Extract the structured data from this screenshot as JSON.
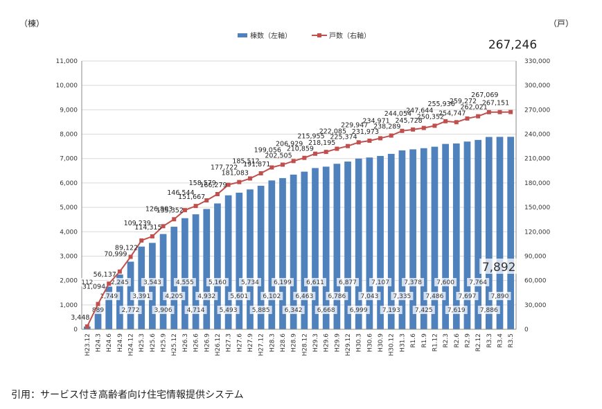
{
  "caption": "引用：サービス付き高齢者向け住宅情報提供システム",
  "chart_data": {
    "type": "bar",
    "left_unit": "（棟）",
    "right_unit": "（戸）",
    "categories": [
      "H23.12",
      "H24.3",
      "H24.6",
      "H24.9",
      "H24.12",
      "H25.3",
      "H25.6",
      "H25.9",
      "H25.12",
      "H26.3",
      "H26.6",
      "H26.9",
      "H26.12",
      "H27.3",
      "H27.6",
      "H27.9",
      "H27.12",
      "H28.3",
      "H28.6",
      "H28.9",
      "H28.12",
      "H29.3",
      "H29.6",
      "H29.9",
      "H29.12",
      "H30.3",
      "H30.6",
      "H30.9",
      "H30.12",
      "H31.3",
      "R1.6",
      "R1.9",
      "R1.12",
      "R2.3",
      "R2.6",
      "R2.9",
      "R2.12",
      "R3.3",
      "R3.4",
      "R3.5"
    ],
    "series": [
      {
        "name": "棟数（左軸）",
        "type": "bar",
        "axis": "left",
        "color": "#4F81BD",
        "values": [
          112,
          889,
          1749,
          2245,
          2772,
          3391,
          3543,
          3906,
          4205,
          4555,
          4714,
          4932,
          5160,
          5493,
          5601,
          5734,
          5885,
          6102,
          6199,
          6342,
          6463,
          6611,
          6668,
          6786,
          6877,
          6999,
          7043,
          7107,
          7193,
          7335,
          7378,
          7425,
          7486,
          7600,
          7619,
          7697,
          7764,
          7886,
          7890,
          7892
        ],
        "labels": [
          "112",
          "889",
          "1,749",
          "2,245",
          "2,772",
          "3,391",
          "3,543",
          "3,906",
          "4,205",
          "4,555",
          "4,714",
          "4,932",
          "5,160",
          "5,493",
          "5,601",
          "5,734",
          "5,885",
          "6,102",
          "6,199",
          "6,342",
          "6,463",
          "6,611",
          "6,668",
          "6,786",
          "6,877",
          "6,999",
          "7,043",
          "7,107",
          "7,193",
          "7,335",
          "7,378",
          "7,425",
          "7,486",
          "7,600",
          "7,619",
          "7,697",
          "7,764",
          "7,886",
          "7,890",
          "7,892"
        ]
      },
      {
        "name": "戸数（右軸）",
        "type": "line",
        "axis": "right",
        "color": "#C0504D",
        "values": [
          3448,
          31094,
          56137,
          70999,
          89122,
          109239,
          114315,
          126803,
          135352,
          146544,
          151667,
          158579,
          166279,
          177722,
          181083,
          185512,
          191871,
          199056,
          202505,
          206929,
          210859,
          215955,
          218195,
          222085,
          225374,
          229947,
          231973,
          234971,
          238289,
          244054,
          245728,
          247644,
          250352,
          255936,
          254747,
          259272,
          262021,
          267069,
          267151,
          267246
        ],
        "labels": [
          "3,448",
          "31,094",
          "56,137",
          "70,999",
          "89,122",
          "109,239",
          "114,315",
          "126,803",
          "135,352",
          "146,544",
          "151,667",
          "158,579",
          "166,279",
          "177,722",
          "181,083",
          "185,512",
          "191,871",
          "199,056",
          "202,505",
          "206,929",
          "210,859",
          "215,955",
          "218,195",
          "222,085",
          "225,374",
          "229,947",
          "231,973",
          "234,971",
          "238,289",
          "244,054",
          "245,728",
          "247,644",
          "250,352",
          "255,936",
          "254,747",
          "259,272",
          "262,021",
          "267,069",
          "267,151",
          "267,246"
        ]
      }
    ],
    "left_axis": {
      "min": 0,
      "max": 11000,
      "step": 1000,
      "ticks": [
        "0",
        "1,000",
        "2,000",
        "3,000",
        "4,000",
        "5,000",
        "6,000",
        "7,000",
        "8,000",
        "9,000",
        "10,000",
        "11,000"
      ]
    },
    "right_axis": {
      "min": 0,
      "max": 330000,
      "step": 30000,
      "ticks": [
        "0",
        "30,000",
        "60,000",
        "90,000",
        "120,000",
        "150,000",
        "180,000",
        "210,000",
        "240,000",
        "270,000",
        "300,000",
        "330,000"
      ]
    },
    "grid": true,
    "legend_position": "top-center"
  }
}
